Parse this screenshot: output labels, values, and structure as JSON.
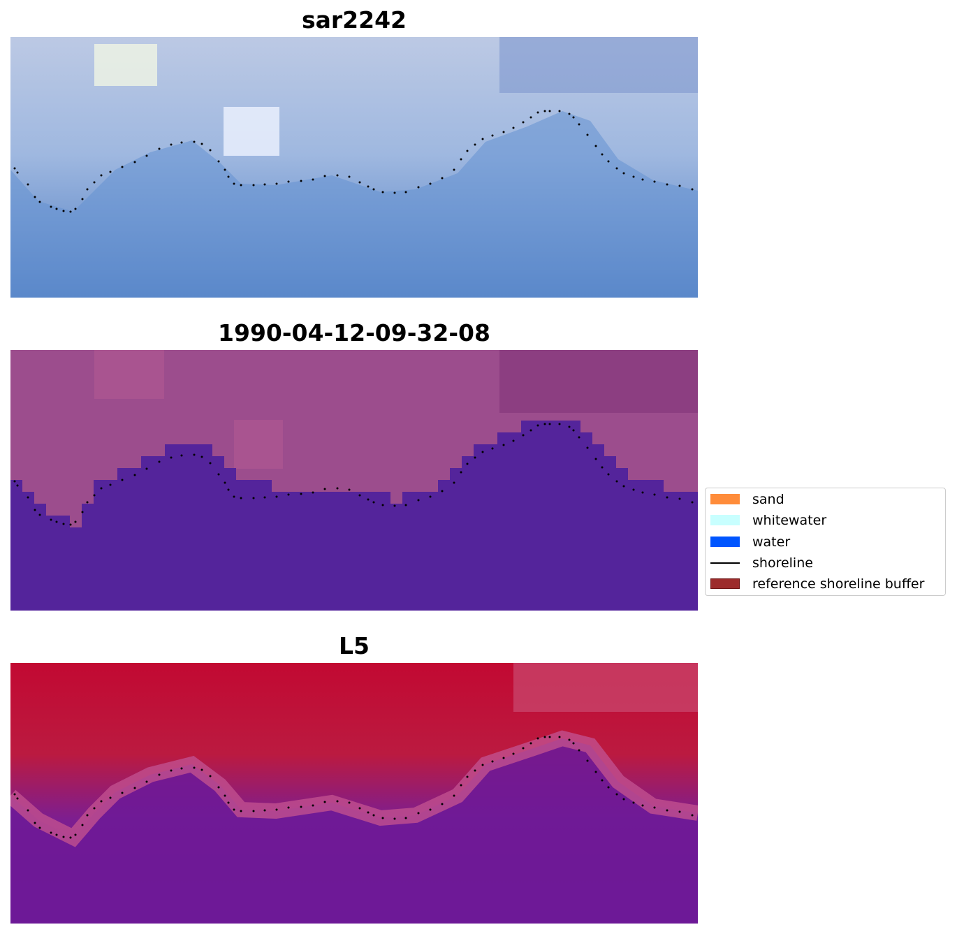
{
  "panels": [
    {
      "id": "sar",
      "title": "sar2242"
    },
    {
      "id": "classified",
      "title": "1990-04-12-09-32-08"
    },
    {
      "id": "index",
      "title": "L5"
    }
  ],
  "legend": {
    "items": [
      {
        "label": "sand",
        "kind": "patch",
        "color": "#ff8c3a"
      },
      {
        "label": "whitewater",
        "kind": "patch",
        "color": "#c8ffff"
      },
      {
        "label": "water",
        "kind": "patch",
        "color": "#0055ff"
      },
      {
        "label": "shoreline",
        "kind": "line",
        "color": "#000000"
      },
      {
        "label": "reference shoreline buffer",
        "kind": "patch",
        "color": "#9c2b2b"
      }
    ]
  },
  "colors": {
    "sar_land": "#b9c8e2",
    "sar_water": "#4f7dc2",
    "classified_land": "#9c4d8d",
    "classified_water": "#54249b",
    "index_land": "#bb1138",
    "index_water": "#6a1796",
    "shoreline": "#000000"
  }
}
